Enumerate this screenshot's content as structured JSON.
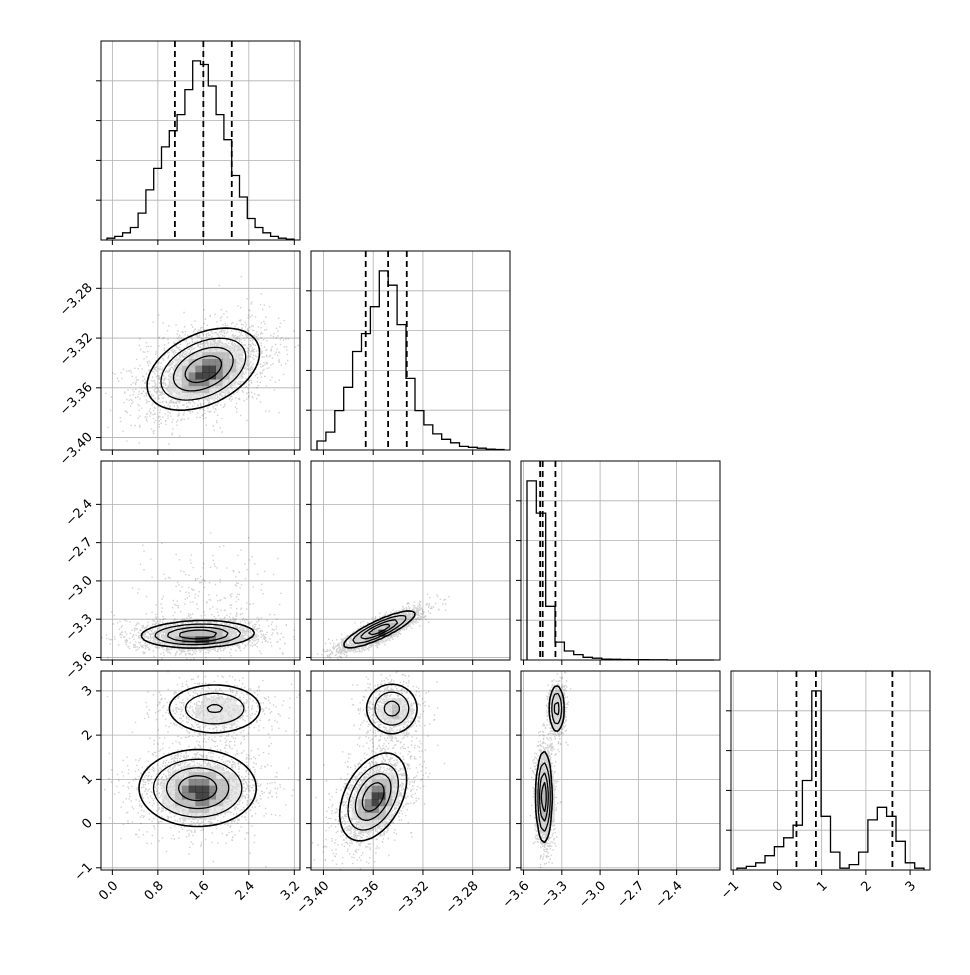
{
  "chart_data": {
    "type": "corner",
    "grid": true,
    "params": [
      {
        "range": [
          -0.2,
          3.3
        ],
        "ticks": [
          0.0,
          0.8,
          1.6,
          2.4,
          3.2
        ],
        "tick_labels": [
          "0.0",
          "0.8",
          "1.6",
          "2.4",
          "3.2"
        ],
        "quantiles": [
          1.1,
          1.6,
          2.1
        ]
      },
      {
        "range": [
          -3.41,
          -3.25
        ],
        "ticks": [
          -3.4,
          -3.36,
          -3.32,
          -3.28
        ],
        "tick_labels": [
          "−3.40",
          "−3.36",
          "−3.32",
          "−3.28"
        ],
        "quantiles": [
          -3.366,
          -3.348,
          -3.333
        ]
      },
      {
        "range": [
          -3.62,
          -2.06
        ],
        "ticks": [
          -3.6,
          -3.3,
          -3.0,
          -2.7,
          -2.4
        ],
        "tick_labels": [
          "−3.6",
          "−3.3",
          "−3.0",
          "−2.7",
          "−2.4"
        ],
        "quantiles": [
          -3.47,
          -3.45,
          -3.35
        ]
      },
      {
        "range": [
          -1.05,
          3.45
        ],
        "ticks": [
          -1,
          0,
          1,
          2,
          3
        ],
        "tick_labels": [
          "−1",
          "0",
          "1",
          "2",
          "3"
        ],
        "quantiles": [
          0.43,
          0.87,
          2.6
        ]
      }
    ],
    "histograms": [
      [
        1,
        2,
        4,
        7,
        15,
        28,
        40,
        52,
        61,
        70,
        84,
        100,
        98,
        86,
        70,
        56,
        36,
        24,
        12,
        7,
        4,
        2,
        1,
        0.5
      ],
      [
        5,
        10,
        22,
        35,
        55,
        65,
        80,
        100,
        92,
        70,
        40,
        22,
        14,
        9,
        6,
        4,
        2,
        1.5,
        1,
        0.5,
        0.3
      ],
      [
        100,
        82,
        30,
        10,
        5,
        3,
        1.5,
        1,
        0.5,
        0.4,
        0.3,
        0.2,
        0.2,
        0.1,
        0.1,
        0,
        0,
        0,
        0,
        0
      ],
      [
        1,
        2,
        4,
        8,
        13,
        18,
        25,
        50,
        100,
        30,
        10,
        1,
        3,
        10,
        28,
        35,
        30,
        16,
        4,
        1
      ]
    ],
    "modes": [
      {
        "pair": [
          1,
          0
        ],
        "components": [
          {
            "w": 1.0,
            "mx": 1.6,
            "my": -3.345,
            "sx": 0.48,
            "sy": 0.016,
            "rho": 0.4
          }
        ]
      },
      {
        "pair": [
          2,
          0
        ],
        "components": [
          {
            "w": 0.9,
            "mx": 1.5,
            "my": -3.42,
            "sx": 0.48,
            "sy": 0.05,
            "rho": 0.1
          },
          {
            "w": 0.1,
            "mx": 1.7,
            "my": -3.15,
            "sx": 0.55,
            "sy": 0.18,
            "rho": 0.1
          }
        ]
      },
      {
        "pair": [
          2,
          1
        ],
        "components": [
          {
            "w": 1.0,
            "mx": -3.355,
            "my": -3.38,
            "sx": 0.014,
            "sy": 0.07,
            "rho": 0.85
          }
        ]
      },
      {
        "pair": [
          3,
          0
        ],
        "components": [
          {
            "w": 0.27,
            "mx": 1.8,
            "my": 2.6,
            "sx": 0.45,
            "sy": 0.3,
            "rho": 0.0
          },
          {
            "w": 0.73,
            "mx": 1.5,
            "my": 0.8,
            "sx": 0.5,
            "sy": 0.42,
            "rho": 0.0
          }
        ]
      },
      {
        "pair": [
          3,
          1
        ],
        "components": [
          {
            "w": 0.27,
            "mx": -3.345,
            "my": 2.6,
            "sx": 0.011,
            "sy": 0.3,
            "rho": 0.0
          },
          {
            "w": 0.73,
            "mx": -3.36,
            "my": 0.6,
            "sx": 0.013,
            "sy": 0.48,
            "rho": 0.4
          }
        ]
      },
      {
        "pair": [
          3,
          2
        ],
        "components": [
          {
            "w": 0.27,
            "mx": -3.34,
            "my": 2.6,
            "sx": 0.03,
            "sy": 0.28,
            "rho": 0.0
          },
          {
            "w": 0.73,
            "mx": -3.44,
            "my": 0.6,
            "sx": 0.03,
            "sy": 0.5,
            "rho": 0.0
          }
        ]
      }
    ]
  }
}
